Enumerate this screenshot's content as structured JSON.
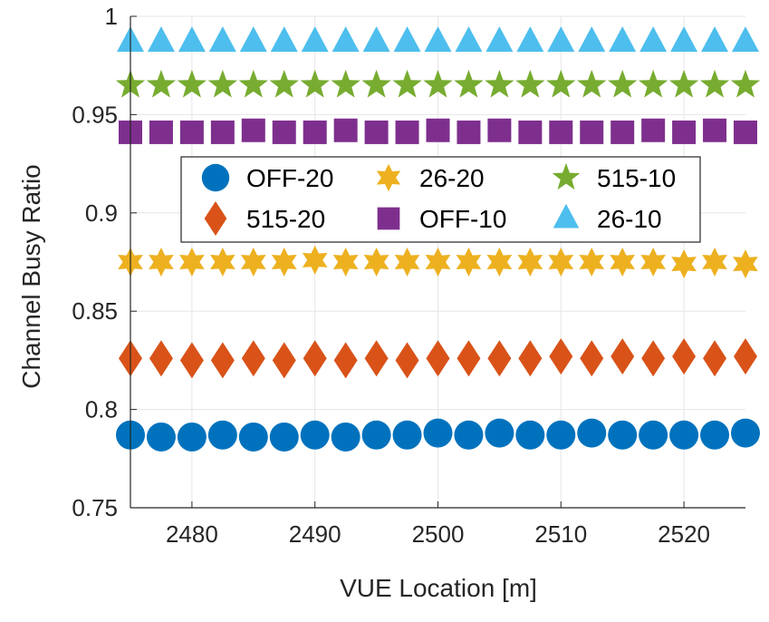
{
  "chart_data": {
    "type": "scatter",
    "xlabel": "VUE Location [m]",
    "ylabel": "Channel Busy Ratio",
    "xlim": [
      2475,
      2525
    ],
    "ylim": [
      0.75,
      1.0
    ],
    "xticks": [
      2480,
      2490,
      2500,
      2510,
      2520
    ],
    "yticks": [
      0.75,
      0.8,
      0.85,
      0.9,
      0.95,
      1.0
    ],
    "ytick_labels": [
      "0.75",
      "0.8",
      "0.85",
      "0.9",
      "0.95",
      "1"
    ],
    "grid": true,
    "legend_position": "center-top",
    "x": [
      2475,
      2477.5,
      2480,
      2482.5,
      2485,
      2487.5,
      2490,
      2492.5,
      2495,
      2497.5,
      2500,
      2502.5,
      2505,
      2507.5,
      2510,
      2512.5,
      2515,
      2517.5,
      2520,
      2522.5,
      2525
    ],
    "series": [
      {
        "name": "OFF-20",
        "marker": "circle",
        "color": "#0072BD",
        "values": [
          0.787,
          0.786,
          0.786,
          0.787,
          0.786,
          0.786,
          0.787,
          0.786,
          0.787,
          0.787,
          0.788,
          0.787,
          0.788,
          0.787,
          0.787,
          0.788,
          0.787,
          0.787,
          0.787,
          0.787,
          0.788
        ]
      },
      {
        "name": "515-20",
        "marker": "diamond",
        "color": "#D95319",
        "values": [
          0.826,
          0.826,
          0.825,
          0.825,
          0.826,
          0.825,
          0.826,
          0.825,
          0.826,
          0.825,
          0.826,
          0.826,
          0.826,
          0.826,
          0.827,
          0.826,
          0.827,
          0.826,
          0.827,
          0.826,
          0.827
        ]
      },
      {
        "name": "26-20",
        "marker": "star6",
        "color": "#EDB120",
        "values": [
          0.875,
          0.875,
          0.875,
          0.875,
          0.875,
          0.875,
          0.876,
          0.875,
          0.875,
          0.875,
          0.875,
          0.875,
          0.875,
          0.875,
          0.875,
          0.875,
          0.875,
          0.875,
          0.874,
          0.875,
          0.874
        ]
      },
      {
        "name": "OFF-10",
        "marker": "square",
        "color": "#7E2F8E",
        "values": [
          0.941,
          0.941,
          0.941,
          0.941,
          0.942,
          0.941,
          0.941,
          0.942,
          0.941,
          0.941,
          0.942,
          0.941,
          0.942,
          0.941,
          0.941,
          0.941,
          0.941,
          0.942,
          0.941,
          0.942,
          0.941
        ]
      },
      {
        "name": "515-10",
        "marker": "star5",
        "color": "#77AC30",
        "values": [
          0.965,
          0.965,
          0.965,
          0.965,
          0.965,
          0.965,
          0.965,
          0.965,
          0.965,
          0.965,
          0.965,
          0.965,
          0.965,
          0.965,
          0.965,
          0.965,
          0.965,
          0.965,
          0.965,
          0.965,
          0.965
        ]
      },
      {
        "name": "26-10",
        "marker": "triangle",
        "color": "#4DBEEE",
        "values": [
          0.987,
          0.987,
          0.987,
          0.987,
          0.987,
          0.987,
          0.987,
          0.987,
          0.987,
          0.987,
          0.987,
          0.987,
          0.987,
          0.987,
          0.987,
          0.987,
          0.987,
          0.987,
          0.987,
          0.987,
          0.987
        ]
      }
    ],
    "legend_order": [
      "OFF-20",
      "26-20",
      "515-10",
      "515-20",
      "OFF-10",
      "26-10"
    ]
  }
}
